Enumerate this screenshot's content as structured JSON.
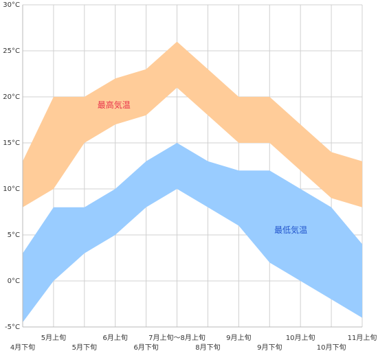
{
  "chart_data": {
    "type": "area",
    "x": [
      "4月下旬",
      "5月上旬",
      "5月下旬",
      "6月上旬",
      "6月下旬",
      "7月上旬～8月上旬",
      "8月下旬",
      "9月上旬",
      "9月下旬",
      "10月上旬",
      "10月下旬",
      "11月上旬"
    ],
    "ylim": [
      -5,
      30
    ],
    "yticks": [
      -5,
      0,
      5,
      10,
      15,
      20,
      25,
      30
    ],
    "yunit": "°C",
    "grid": true,
    "series": [
      {
        "name": "最高気温",
        "color": "#ffcc99",
        "label_color": "#e8334a",
        "low": [
          8,
          10,
          15,
          17,
          18,
          21,
          18,
          15,
          15,
          12,
          9,
          8
        ],
        "high": [
          13,
          20,
          20,
          22,
          23,
          26,
          23,
          20,
          20,
          17,
          14,
          13
        ]
      },
      {
        "name": "最低気温",
        "color": "#99ccff",
        "label_color": "#2255cc",
        "low": [
          -4.5,
          0,
          3,
          5,
          8,
          10,
          8,
          6,
          2,
          0,
          -2,
          -4
        ],
        "high": [
          3,
          8,
          8,
          10,
          13,
          15,
          13,
          12,
          12,
          10,
          8,
          4
        ]
      }
    ]
  }
}
